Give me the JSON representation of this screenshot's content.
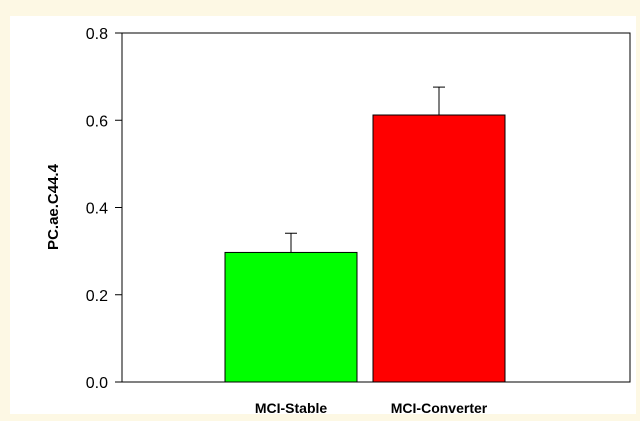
{
  "chart_data": {
    "type": "bar",
    "title": "",
    "xlabel": "",
    "ylabel": "PC.ae.C44.4",
    "categories": [
      "MCI-Stable",
      "MCI-Converter"
    ],
    "values": [
      0.297,
      0.612
    ],
    "errors": [
      0.044,
      0.064
    ],
    "colors": [
      "#00ff00",
      "#ff0000"
    ],
    "ylim": [
      0,
      0.8
    ],
    "yticks": [
      "0.0",
      "0.2",
      "0.4",
      "0.6",
      "0.8"
    ],
    "ytick_values": [
      0,
      0.2,
      0.4,
      0.6,
      0.8
    ],
    "grid": false,
    "legend": "none"
  }
}
